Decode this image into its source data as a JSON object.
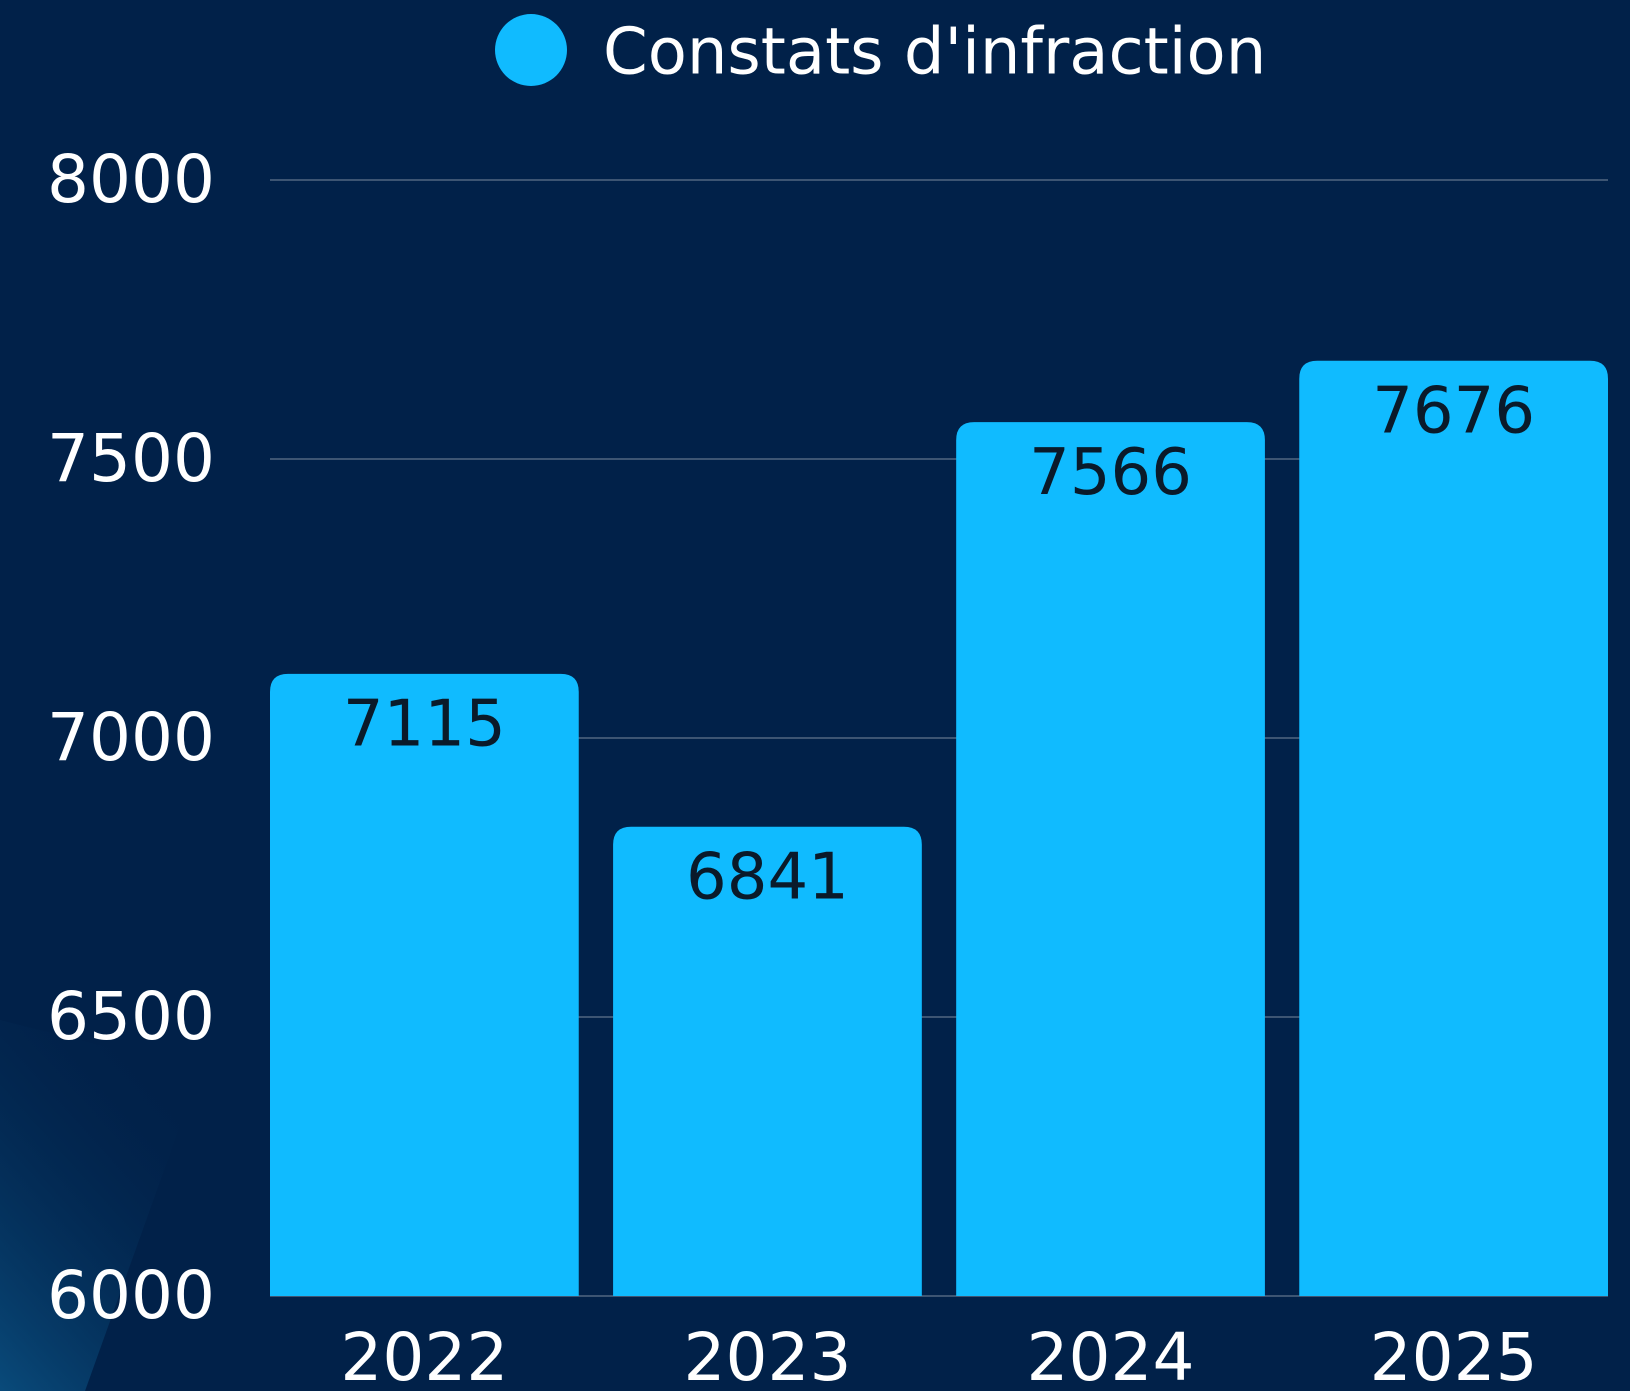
{
  "chart_data": {
    "type": "bar",
    "categories": [
      "2022",
      "2023",
      "2024",
      "2025"
    ],
    "series": [
      {
        "name": "Constats d'infraction",
        "color": "#10bbff",
        "values": [
          7115,
          6841,
          7566,
          7676
        ]
      }
    ],
    "ylim": [
      6000,
      8000
    ],
    "yticks": [
      6000,
      6500,
      7000,
      7500,
      8000
    ],
    "grid": true
  }
}
